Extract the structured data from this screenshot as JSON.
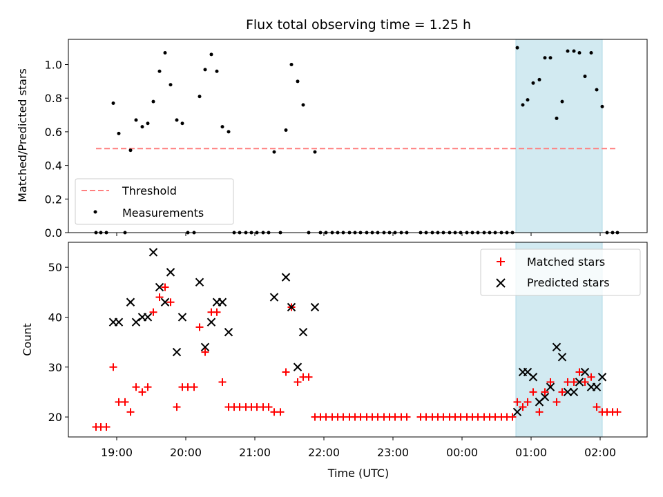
{
  "chart_data": [
    {
      "type": "scatter",
      "title": "Flux total observing time = 1.25 h",
      "xlabel": "",
      "ylabel": "Matched/Predicted stars",
      "ylim": [
        0,
        1.15
      ],
      "yticks": [
        0.0,
        0.2,
        0.4,
        0.6,
        0.8,
        1.0
      ],
      "ytick_labels": [
        "0.0",
        "0.2",
        "0.4",
        "0.6",
        "0.8",
        "1.0"
      ],
      "xlim_hours": [
        18.3,
        26.68
      ],
      "highlight_span_hours": [
        24.78,
        26.03
      ],
      "highlight_color": "#add8e6",
      "threshold": {
        "name": "Threshold",
        "value": 0.5,
        "x_range_hours": [
          18.7,
          26.25
        ],
        "color": "#ff7f7f"
      },
      "series": [
        {
          "name": "Measurements",
          "color": "#000000",
          "marker": "dot",
          "points": [
            [
              18.7,
              0
            ],
            [
              18.77,
              0
            ],
            [
              18.85,
              0
            ],
            [
              18.95,
              0.77
            ],
            [
              19.03,
              0.59
            ],
            [
              19.12,
              0
            ],
            [
              19.2,
              0.49
            ],
            [
              19.28,
              0.67
            ],
            [
              19.37,
              0.63
            ],
            [
              19.45,
              0.65
            ],
            [
              19.53,
              0.78
            ],
            [
              19.62,
              0.96
            ],
            [
              19.7,
              1.07
            ],
            [
              19.78,
              0.88
            ],
            [
              19.87,
              0.67
            ],
            [
              19.95,
              0.65
            ],
            [
              20.03,
              0
            ],
            [
              20.12,
              0
            ],
            [
              20.2,
              0.81
            ],
            [
              20.28,
              0.97
            ],
            [
              20.37,
              1.06
            ],
            [
              20.45,
              0.96
            ],
            [
              20.53,
              0.63
            ],
            [
              20.62,
              0.6
            ],
            [
              20.7,
              0
            ],
            [
              20.78,
              0
            ],
            [
              20.87,
              0
            ],
            [
              20.95,
              0
            ],
            [
              21.03,
              0
            ],
            [
              21.12,
              0
            ],
            [
              21.2,
              0
            ],
            [
              21.28,
              0.48
            ],
            [
              21.37,
              0
            ],
            [
              21.45,
              0.61
            ],
            [
              21.53,
              1.0
            ],
            [
              21.62,
              0.9
            ],
            [
              21.7,
              0.76
            ],
            [
              21.78,
              0
            ],
            [
              21.87,
              0.48
            ],
            [
              21.95,
              0
            ],
            [
              22.03,
              0
            ],
            [
              22.12,
              0
            ],
            [
              22.2,
              0
            ],
            [
              22.28,
              0
            ],
            [
              22.37,
              0
            ],
            [
              22.45,
              0
            ],
            [
              22.53,
              0
            ],
            [
              22.62,
              0
            ],
            [
              22.7,
              0
            ],
            [
              22.78,
              0
            ],
            [
              22.87,
              0
            ],
            [
              22.95,
              0
            ],
            [
              23.03,
              0
            ],
            [
              23.12,
              0
            ],
            [
              23.2,
              0
            ],
            [
              23.4,
              0
            ],
            [
              23.48,
              0
            ],
            [
              23.57,
              0
            ],
            [
              23.65,
              0
            ],
            [
              23.73,
              0
            ],
            [
              23.82,
              0
            ],
            [
              23.9,
              0
            ],
            [
              23.98,
              0
            ],
            [
              24.07,
              0
            ],
            [
              24.15,
              0
            ],
            [
              24.23,
              0
            ],
            [
              24.32,
              0
            ],
            [
              24.4,
              0
            ],
            [
              24.48,
              0
            ],
            [
              24.57,
              0
            ],
            [
              24.65,
              0
            ],
            [
              24.73,
              0
            ],
            [
              24.8,
              1.1
            ],
            [
              24.88,
              0.76
            ],
            [
              24.95,
              0.79
            ],
            [
              25.03,
              0.89
            ],
            [
              25.12,
              0.91
            ],
            [
              25.2,
              1.04
            ],
            [
              25.28,
              1.04
            ],
            [
              25.37,
              0.68
            ],
            [
              25.45,
              0.78
            ],
            [
              25.53,
              1.08
            ],
            [
              25.62,
              1.08
            ],
            [
              25.7,
              1.07
            ],
            [
              25.78,
              0.93
            ],
            [
              25.87,
              1.07
            ],
            [
              25.95,
              0.85
            ],
            [
              26.03,
              0.75
            ],
            [
              26.1,
              0
            ],
            [
              26.18,
              0
            ],
            [
              26.25,
              0
            ]
          ]
        }
      ],
      "legend": {
        "placement": "lower-left",
        "entries": [
          "Threshold",
          "Measurements"
        ]
      }
    },
    {
      "type": "scatter",
      "title": "",
      "xlabel": "Time (UTC)",
      "ylabel": "Count",
      "ylim": [
        16,
        55
      ],
      "yticks": [
        20,
        30,
        40,
        50
      ],
      "ytick_labels": [
        "20",
        "30",
        "40",
        "50"
      ],
      "xticks_hours": [
        19,
        20,
        21,
        22,
        23,
        24,
        25,
        26
      ],
      "xtick_labels": [
        "19:00",
        "20:00",
        "21:00",
        "22:00",
        "23:00",
        "00:00",
        "01:00",
        "02:00"
      ],
      "xlim_hours": [
        18.3,
        26.68
      ],
      "highlight_span_hours": [
        24.78,
        26.03
      ],
      "highlight_color": "#add8e6",
      "series": [
        {
          "name": "Matched stars",
          "color": "#ff0000",
          "marker": "plus",
          "points": [
            [
              18.7,
              18
            ],
            [
              18.77,
              18
            ],
            [
              18.85,
              18
            ],
            [
              18.95,
              30
            ],
            [
              19.03,
              23
            ],
            [
              19.12,
              23
            ],
            [
              19.2,
              21
            ],
            [
              19.28,
              26
            ],
            [
              19.37,
              25
            ],
            [
              19.45,
              26
            ],
            [
              19.53,
              41
            ],
            [
              19.62,
              44
            ],
            [
              19.7,
              46
            ],
            [
              19.78,
              43
            ],
            [
              19.87,
              22
            ],
            [
              19.95,
              26
            ],
            [
              20.03,
              26
            ],
            [
              20.12,
              26
            ],
            [
              20.2,
              38
            ],
            [
              20.28,
              33
            ],
            [
              20.37,
              41
            ],
            [
              20.45,
              41
            ],
            [
              20.53,
              27
            ],
            [
              20.62,
              22
            ],
            [
              20.7,
              22
            ],
            [
              20.78,
              22
            ],
            [
              20.87,
              22
            ],
            [
              20.95,
              22
            ],
            [
              21.03,
              22
            ],
            [
              21.12,
              22
            ],
            [
              21.2,
              22
            ],
            [
              21.28,
              21
            ],
            [
              21.37,
              21
            ],
            [
              21.45,
              29
            ],
            [
              21.53,
              42
            ],
            [
              21.62,
              27
            ],
            [
              21.7,
              28
            ],
            [
              21.78,
              28
            ],
            [
              21.87,
              20
            ],
            [
              21.95,
              20
            ],
            [
              22.03,
              20
            ],
            [
              22.12,
              20
            ],
            [
              22.2,
              20
            ],
            [
              22.28,
              20
            ],
            [
              22.37,
              20
            ],
            [
              22.45,
              20
            ],
            [
              22.53,
              20
            ],
            [
              22.62,
              20
            ],
            [
              22.7,
              20
            ],
            [
              22.78,
              20
            ],
            [
              22.87,
              20
            ],
            [
              22.95,
              20
            ],
            [
              23.03,
              20
            ],
            [
              23.12,
              20
            ],
            [
              23.2,
              20
            ],
            [
              23.4,
              20
            ],
            [
              23.48,
              20
            ],
            [
              23.57,
              20
            ],
            [
              23.65,
              20
            ],
            [
              23.73,
              20
            ],
            [
              23.82,
              20
            ],
            [
              23.9,
              20
            ],
            [
              23.98,
              20
            ],
            [
              24.07,
              20
            ],
            [
              24.15,
              20
            ],
            [
              24.23,
              20
            ],
            [
              24.32,
              20
            ],
            [
              24.4,
              20
            ],
            [
              24.48,
              20
            ],
            [
              24.57,
              20
            ],
            [
              24.65,
              20
            ],
            [
              24.73,
              20
            ],
            [
              24.8,
              23
            ],
            [
              24.88,
              22
            ],
            [
              24.95,
              23
            ],
            [
              25.03,
              25
            ],
            [
              25.12,
              21
            ],
            [
              25.2,
              25
            ],
            [
              25.28,
              27
            ],
            [
              25.37,
              23
            ],
            [
              25.45,
              25
            ],
            [
              25.53,
              27
            ],
            [
              25.62,
              27
            ],
            [
              25.7,
              29
            ],
            [
              25.78,
              27
            ],
            [
              25.87,
              28
            ],
            [
              25.95,
              22
            ],
            [
              26.03,
              21
            ],
            [
              26.1,
              21
            ],
            [
              26.18,
              21
            ],
            [
              26.25,
              21
            ]
          ]
        },
        {
          "name": "Predicted stars",
          "color": "#000000",
          "marker": "x",
          "points": [
            [
              18.95,
              39
            ],
            [
              19.03,
              39
            ],
            [
              19.2,
              43
            ],
            [
              19.28,
              39
            ],
            [
              19.37,
              40
            ],
            [
              19.45,
              40
            ],
            [
              19.53,
              53
            ],
            [
              19.62,
              46
            ],
            [
              19.7,
              43
            ],
            [
              19.78,
              49
            ],
            [
              19.87,
              33
            ],
            [
              19.95,
              40
            ],
            [
              20.2,
              47
            ],
            [
              20.28,
              34
            ],
            [
              20.37,
              39
            ],
            [
              20.45,
              43
            ],
            [
              20.53,
              43
            ],
            [
              20.62,
              37
            ],
            [
              21.28,
              44
            ],
            [
              21.45,
              48
            ],
            [
              21.53,
              42
            ],
            [
              21.62,
              30
            ],
            [
              21.7,
              37
            ],
            [
              21.87,
              42
            ],
            [
              24.8,
              21
            ],
            [
              24.88,
              29
            ],
            [
              24.95,
              29
            ],
            [
              25.03,
              28
            ],
            [
              25.12,
              23
            ],
            [
              25.2,
              24
            ],
            [
              25.28,
              26
            ],
            [
              25.37,
              34
            ],
            [
              25.45,
              32
            ],
            [
              25.53,
              25
            ],
            [
              25.62,
              25
            ],
            [
              25.7,
              27
            ],
            [
              25.78,
              29
            ],
            [
              25.87,
              26
            ],
            [
              25.95,
              26
            ],
            [
              26.03,
              28
            ]
          ]
        }
      ],
      "legend": {
        "placement": "top-right",
        "entries": [
          "Matched stars",
          "Predicted stars"
        ]
      }
    }
  ]
}
